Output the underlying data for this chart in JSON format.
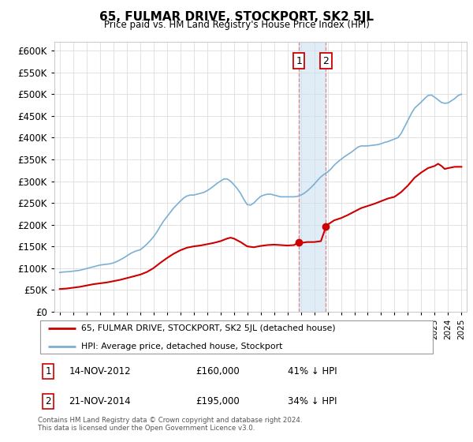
{
  "title": "65, FULMAR DRIVE, STOCKPORT, SK2 5JL",
  "subtitle": "Price paid vs. HM Land Registry's House Price Index (HPI)",
  "ylim": [
    0,
    620000
  ],
  "yticks": [
    0,
    50000,
    100000,
    150000,
    200000,
    250000,
    300000,
    350000,
    400000,
    450000,
    500000,
    550000,
    600000
  ],
  "background_color": "#ffffff",
  "grid_color": "#dddddd",
  "hpi_color": "#7ab0d4",
  "price_color": "#cc0000",
  "sale1_date_num": 2012.87,
  "sale2_date_num": 2014.88,
  "sale1_price": 160000,
  "sale2_price": 195000,
  "legend_line1": "65, FULMAR DRIVE, STOCKPORT, SK2 5JL (detached house)",
  "legend_line2": "HPI: Average price, detached house, Stockport",
  "footer": "Contains HM Land Registry data © Crown copyright and database right 2024.\nThis data is licensed under the Open Government Licence v3.0.",
  "hpi_data": [
    [
      1995.0,
      90000
    ],
    [
      1995.25,
      91000
    ],
    [
      1995.5,
      91500
    ],
    [
      1995.75,
      92000
    ],
    [
      1996.0,
      93000
    ],
    [
      1996.25,
      94000
    ],
    [
      1996.5,
      95000
    ],
    [
      1996.75,
      97000
    ],
    [
      1997.0,
      99000
    ],
    [
      1997.25,
      101000
    ],
    [
      1997.5,
      103000
    ],
    [
      1997.75,
      105000
    ],
    [
      1998.0,
      107000
    ],
    [
      1998.25,
      108000
    ],
    [
      1998.5,
      109000
    ],
    [
      1998.75,
      110000
    ],
    [
      1999.0,
      112000
    ],
    [
      1999.25,
      115000
    ],
    [
      1999.5,
      119000
    ],
    [
      1999.75,
      123000
    ],
    [
      2000.0,
      128000
    ],
    [
      2000.25,
      133000
    ],
    [
      2000.5,
      137000
    ],
    [
      2000.75,
      140000
    ],
    [
      2001.0,
      142000
    ],
    [
      2001.25,
      148000
    ],
    [
      2001.5,
      155000
    ],
    [
      2001.75,
      163000
    ],
    [
      2002.0,
      172000
    ],
    [
      2002.25,
      183000
    ],
    [
      2002.5,
      196000
    ],
    [
      2002.75,
      208000
    ],
    [
      2003.0,
      218000
    ],
    [
      2003.25,
      228000
    ],
    [
      2003.5,
      238000
    ],
    [
      2003.75,
      246000
    ],
    [
      2004.0,
      254000
    ],
    [
      2004.25,
      261000
    ],
    [
      2004.5,
      266000
    ],
    [
      2004.75,
      268000
    ],
    [
      2005.0,
      268000
    ],
    [
      2005.25,
      270000
    ],
    [
      2005.5,
      272000
    ],
    [
      2005.75,
      274000
    ],
    [
      2006.0,
      278000
    ],
    [
      2006.25,
      283000
    ],
    [
      2006.5,
      289000
    ],
    [
      2006.75,
      295000
    ],
    [
      2007.0,
      300000
    ],
    [
      2007.25,
      305000
    ],
    [
      2007.5,
      305000
    ],
    [
      2007.75,
      300000
    ],
    [
      2008.0,
      292000
    ],
    [
      2008.25,
      283000
    ],
    [
      2008.5,
      272000
    ],
    [
      2008.75,
      258000
    ],
    [
      2009.0,
      246000
    ],
    [
      2009.25,
      245000
    ],
    [
      2009.5,
      250000
    ],
    [
      2009.75,
      258000
    ],
    [
      2010.0,
      265000
    ],
    [
      2010.25,
      268000
    ],
    [
      2010.5,
      270000
    ],
    [
      2010.75,
      270000
    ],
    [
      2011.0,
      268000
    ],
    [
      2011.25,
      266000
    ],
    [
      2011.5,
      264000
    ],
    [
      2011.75,
      264000
    ],
    [
      2012.0,
      264000
    ],
    [
      2012.25,
      264000
    ],
    [
      2012.5,
      264000
    ],
    [
      2012.75,
      265000
    ],
    [
      2013.0,
      268000
    ],
    [
      2013.25,
      272000
    ],
    [
      2013.5,
      278000
    ],
    [
      2013.75,
      285000
    ],
    [
      2014.0,
      293000
    ],
    [
      2014.25,
      302000
    ],
    [
      2014.5,
      310000
    ],
    [
      2014.75,
      316000
    ],
    [
      2015.0,
      321000
    ],
    [
      2015.25,
      328000
    ],
    [
      2015.5,
      337000
    ],
    [
      2015.75,
      344000
    ],
    [
      2016.0,
      350000
    ],
    [
      2016.25,
      356000
    ],
    [
      2016.5,
      361000
    ],
    [
      2016.75,
      366000
    ],
    [
      2017.0,
      372000
    ],
    [
      2017.25,
      378000
    ],
    [
      2017.5,
      381000
    ],
    [
      2017.75,
      381000
    ],
    [
      2018.0,
      381000
    ],
    [
      2018.25,
      382000
    ],
    [
      2018.5,
      383000
    ],
    [
      2018.75,
      384000
    ],
    [
      2019.0,
      386000
    ],
    [
      2019.25,
      389000
    ],
    [
      2019.5,
      391000
    ],
    [
      2019.75,
      394000
    ],
    [
      2020.0,
      397000
    ],
    [
      2020.25,
      400000
    ],
    [
      2020.5,
      410000
    ],
    [
      2020.75,
      425000
    ],
    [
      2021.0,
      440000
    ],
    [
      2021.25,
      455000
    ],
    [
      2021.5,
      468000
    ],
    [
      2021.75,
      475000
    ],
    [
      2022.0,
      482000
    ],
    [
      2022.25,
      490000
    ],
    [
      2022.5,
      497000
    ],
    [
      2022.75,
      498000
    ],
    [
      2023.0,
      493000
    ],
    [
      2023.25,
      487000
    ],
    [
      2023.5,
      481000
    ],
    [
      2023.75,
      479000
    ],
    [
      2024.0,
      480000
    ],
    [
      2024.25,
      485000
    ],
    [
      2024.5,
      490000
    ],
    [
      2024.75,
      497000
    ],
    [
      2025.0,
      500000
    ]
  ],
  "price_data": [
    [
      1995.0,
      52000
    ],
    [
      1995.5,
      53000
    ],
    [
      1996.0,
      55000
    ],
    [
      1996.5,
      57000
    ],
    [
      1997.0,
      60000
    ],
    [
      1997.5,
      63000
    ],
    [
      1998.0,
      65000
    ],
    [
      1998.5,
      67000
    ],
    [
      1999.0,
      70000
    ],
    [
      1999.5,
      73000
    ],
    [
      2000.0,
      77000
    ],
    [
      2000.5,
      81000
    ],
    [
      2001.0,
      85000
    ],
    [
      2001.5,
      91000
    ],
    [
      2002.0,
      100000
    ],
    [
      2002.5,
      112000
    ],
    [
      2003.0,
      123000
    ],
    [
      2003.5,
      133000
    ],
    [
      2004.0,
      141000
    ],
    [
      2004.5,
      147000
    ],
    [
      2005.0,
      150000
    ],
    [
      2005.5,
      152000
    ],
    [
      2006.0,
      155000
    ],
    [
      2006.5,
      158000
    ],
    [
      2007.0,
      162000
    ],
    [
      2007.25,
      165000
    ],
    [
      2007.5,
      168000
    ],
    [
      2007.75,
      170000
    ],
    [
      2008.0,
      168000
    ],
    [
      2008.5,
      160000
    ],
    [
      2009.0,
      150000
    ],
    [
      2009.5,
      148000
    ],
    [
      2010.0,
      151000
    ],
    [
      2010.5,
      153000
    ],
    [
      2011.0,
      154000
    ],
    [
      2011.5,
      153000
    ],
    [
      2012.0,
      152000
    ],
    [
      2012.5,
      153000
    ],
    [
      2012.87,
      160000
    ],
    [
      2013.0,
      158000
    ],
    [
      2013.5,
      160000
    ],
    [
      2014.0,
      160000
    ],
    [
      2014.5,
      162000
    ],
    [
      2014.88,
      195000
    ],
    [
      2015.0,
      200000
    ],
    [
      2015.5,
      210000
    ],
    [
      2016.0,
      215000
    ],
    [
      2016.5,
      222000
    ],
    [
      2017.0,
      230000
    ],
    [
      2017.5,
      238000
    ],
    [
      2018.0,
      243000
    ],
    [
      2018.5,
      248000
    ],
    [
      2019.0,
      254000
    ],
    [
      2019.5,
      260000
    ],
    [
      2020.0,
      264000
    ],
    [
      2020.5,
      275000
    ],
    [
      2021.0,
      290000
    ],
    [
      2021.5,
      308000
    ],
    [
      2022.0,
      320000
    ],
    [
      2022.5,
      330000
    ],
    [
      2023.0,
      335000
    ],
    [
      2023.25,
      340000
    ],
    [
      2023.5,
      335000
    ],
    [
      2023.75,
      328000
    ],
    [
      2024.0,
      330000
    ],
    [
      2024.5,
      333000
    ],
    [
      2025.0,
      333000
    ]
  ]
}
